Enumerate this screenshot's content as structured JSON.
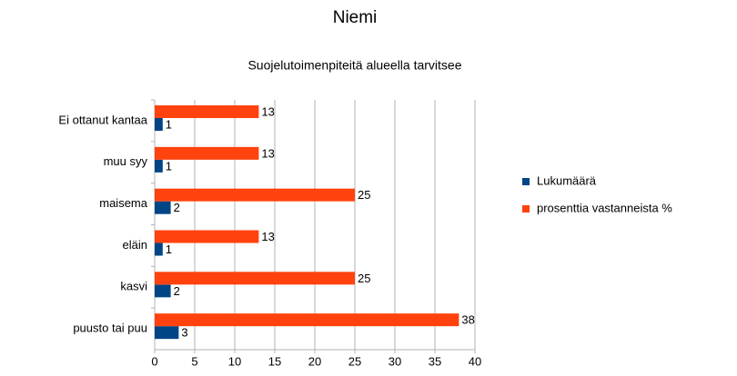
{
  "chart_data": {
    "type": "bar",
    "orientation": "horizontal",
    "title": "Niemi",
    "subtitle": "Suojelutoimenpiteitä alueella tarvitsee",
    "categories": [
      "Ei ottanut kantaa",
      "muu syy",
      "maisema",
      "eläin",
      "kasvi",
      "puusto tai puu"
    ],
    "series": [
      {
        "name": "Lukumäärä",
        "color": "#004586",
        "values": [
          1,
          1,
          2,
          1,
          2,
          3
        ]
      },
      {
        "name": "prosenttia vastanneista %",
        "color": "#ff420e",
        "values": [
          13,
          13,
          25,
          13,
          25,
          38
        ]
      }
    ],
    "xlim": [
      0,
      40
    ],
    "xticks": [
      0,
      5,
      10,
      15,
      20,
      25,
      30,
      35,
      40
    ],
    "grid": true,
    "legend": "right"
  }
}
